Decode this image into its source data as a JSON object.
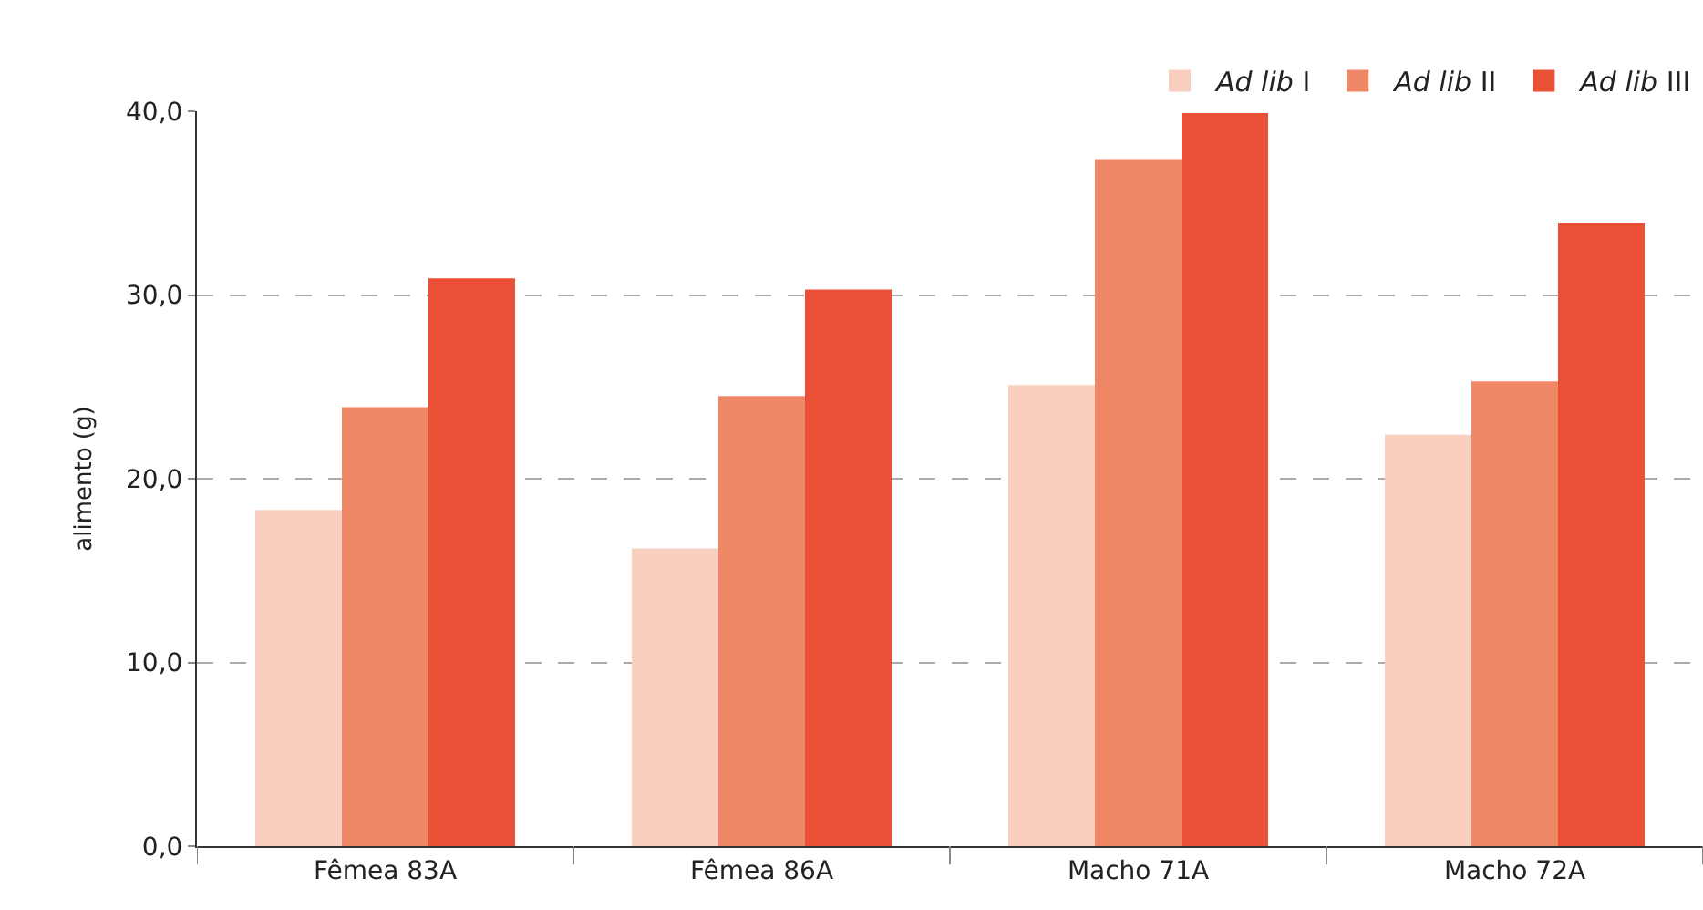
{
  "chart_data": {
    "type": "bar",
    "ylabel": "alimento (g)",
    "categories": [
      "Fêmea 83A",
      "Fêmea 86A",
      "Macho 71A",
      "Macho 72A"
    ],
    "series": [
      {
        "name": "Ad lib I",
        "color": "#f9d0bf",
        "values": [
          18.3,
          16.2,
          25.1,
          22.4
        ]
      },
      {
        "name": "Ad lib II",
        "color": "#f08868",
        "values": [
          23.9,
          24.5,
          37.4,
          25.3
        ]
      },
      {
        "name": "Ad lib III",
        "color": "#e95036",
        "values": [
          30.9,
          30.3,
          39.9,
          33.9
        ]
      }
    ],
    "ylim": [
      0,
      40
    ],
    "yticks": [
      {
        "value": 0,
        "label": "0,0"
      },
      {
        "value": 10,
        "label": "10,0"
      },
      {
        "value": 20,
        "label": "20,0"
      },
      {
        "value": 30,
        "label": "30,0"
      },
      {
        "value": 40,
        "label": "40,0"
      }
    ],
    "grid": "y",
    "legend": "top right"
  }
}
